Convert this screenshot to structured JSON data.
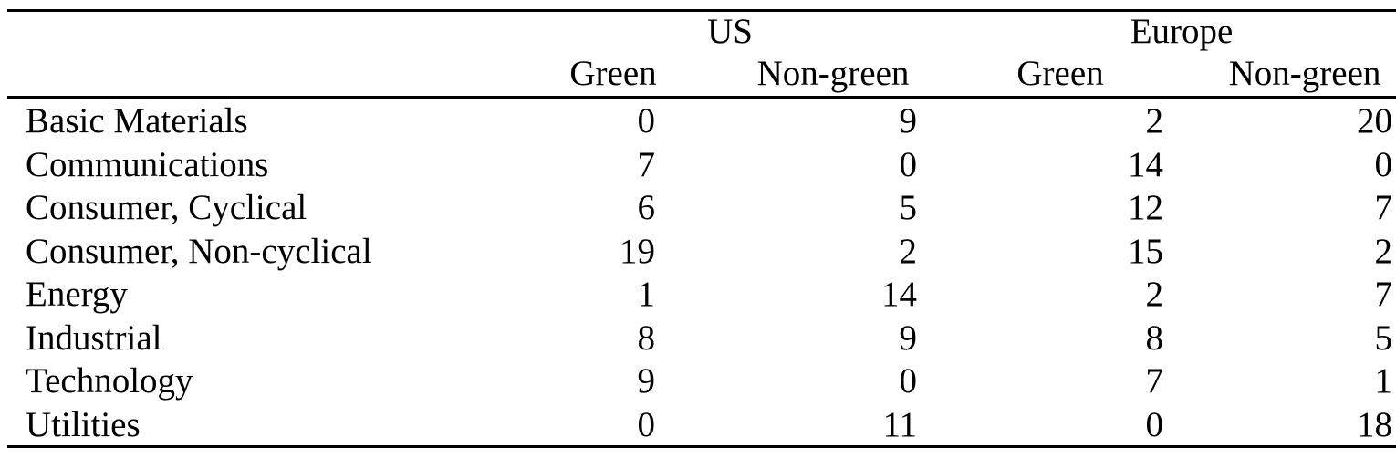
{
  "table": {
    "groups": [
      "US",
      "Europe"
    ],
    "subheaders": [
      "Green",
      "Non-green",
      "Green",
      "Non-green"
    ],
    "rows": [
      {
        "label": "Basic Materials",
        "values": [
          0,
          9,
          2,
          20
        ]
      },
      {
        "label": "Communications",
        "values": [
          7,
          0,
          14,
          0
        ]
      },
      {
        "label": "Consumer, Cyclical",
        "values": [
          6,
          5,
          12,
          7
        ]
      },
      {
        "label": "Consumer, Non-cyclical",
        "values": [
          19,
          2,
          15,
          2
        ]
      },
      {
        "label": "Energy",
        "values": [
          1,
          14,
          2,
          7
        ]
      },
      {
        "label": "Industrial",
        "values": [
          8,
          9,
          8,
          5
        ]
      },
      {
        "label": "Technology",
        "values": [
          9,
          0,
          7,
          1
        ]
      },
      {
        "label": "Utilities",
        "values": [
          0,
          11,
          0,
          18
        ]
      }
    ]
  }
}
